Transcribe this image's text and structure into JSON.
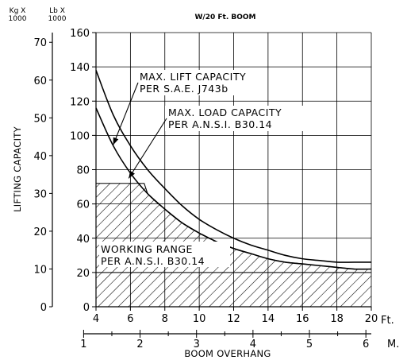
{
  "chart_data": {
    "type": "line",
    "title": "W/20 Ft. BOOM",
    "ylabel": "LIFTING CAPACITY",
    "xlabel": "BOOM OVERHANG",
    "y_unit_lb": "Lb X\n1000",
    "y_unit_kg": "Kg X\n1000",
    "x_unit_ft": "Ft.",
    "x_unit_m": "M.",
    "xlim": [
      4,
      20
    ],
    "ylim": [
      0,
      160
    ],
    "x_ticks_ft": [
      "4",
      "6",
      "8",
      "10",
      "12",
      "14",
      "16",
      "18",
      "20"
    ],
    "x_ticks_m": [
      {
        "value": 1,
        "label": "1"
      },
      {
        "value": 2,
        "label": "2"
      },
      {
        "value": 3,
        "label": "3"
      },
      {
        "value": 4,
        "label": "4"
      },
      {
        "value": 5,
        "label": "5"
      },
      {
        "value": 6,
        "label": "6"
      }
    ],
    "y_ticks_lb": [
      "0",
      "20",
      "40",
      "60",
      "80",
      "100",
      "120",
      "140",
      "160"
    ],
    "y_ticks_kg": [
      "0",
      "10",
      "20",
      "30",
      "40",
      "50",
      "60",
      "70"
    ],
    "series": [
      {
        "name": "MAX. LIFT CAPACITY PER S.A.E. J743b",
        "x": [
          4,
          5,
          6,
          7,
          8,
          9,
          10,
          11,
          12,
          13,
          14,
          15,
          16,
          17,
          18,
          19,
          20
        ],
        "y": [
          138,
          112,
          94,
          80,
          69,
          59,
          51,
          45,
          40,
          36,
          33,
          30,
          28,
          27,
          26,
          26,
          26
        ]
      },
      {
        "name": "MAX. LOAD CAPACITY PER A.N.S.I. B30.14",
        "x": [
          4,
          5,
          6,
          7,
          8,
          9,
          10,
          11,
          12,
          13,
          14,
          15,
          16,
          17,
          18,
          19,
          20
        ],
        "y": [
          116,
          94,
          78,
          66,
          57,
          49,
          43,
          38,
          34,
          31,
          28,
          26,
          25,
          24,
          23,
          22,
          22
        ]
      }
    ],
    "working_range": {
      "label": "WORKING RANGE\nPER A.N.S.I. B30.14",
      "x": [
        4,
        5,
        6,
        6.8,
        7,
        8,
        9,
        10,
        11,
        12,
        13,
        14,
        15,
        16,
        17,
        18,
        19,
        20
      ],
      "y": [
        72,
        72,
        72,
        72,
        66,
        57,
        49,
        43,
        38,
        34,
        31,
        28,
        26,
        25,
        24,
        23,
        22,
        22
      ]
    },
    "reference_line_y": 20,
    "annotations": [
      {
        "text": "MAX. LIFT CAPACITY\nPER S.A.E. J743b",
        "series": 0,
        "arrow_x": 5.0
      },
      {
        "text": "MAX. LOAD CAPACITY\nPER A.N.S.I. B30.14",
        "series": 1,
        "arrow_x": 5.9
      }
    ],
    "grid": true,
    "line_color": "#000000"
  }
}
